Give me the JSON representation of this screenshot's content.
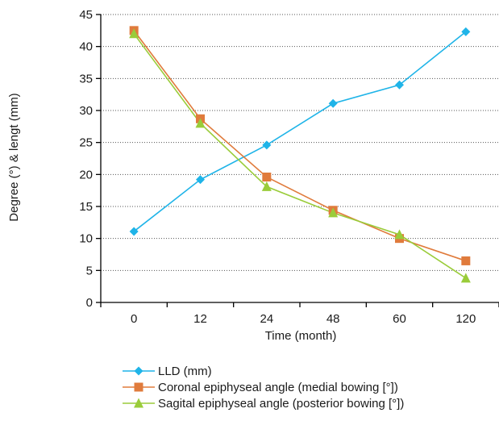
{
  "chart_data": {
    "type": "line",
    "title": "",
    "xlabel": "Time (month)",
    "ylabel": "Degree (°) & lengt (mm)",
    "categories": [
      "0",
      "12",
      "24",
      "48",
      "60",
      "120"
    ],
    "ylim": [
      0,
      45
    ],
    "yticks": [
      0,
      5,
      10,
      15,
      20,
      25,
      30,
      35,
      40,
      45
    ],
    "grid": "horizontal dotted",
    "legend_position": "bottom",
    "series": [
      {
        "name": "LLD (mm)",
        "values": [
          11.1,
          19.2,
          24.6,
          31.1,
          34.0,
          42.3
        ],
        "color": "#1fb4e8",
        "marker": "diamond"
      },
      {
        "name": "Coronal epiphyseal angle (medial bowing [°])",
        "values": [
          42.5,
          28.7,
          19.6,
          14.4,
          10.0,
          6.5
        ],
        "color": "#e07b3c",
        "marker": "square"
      },
      {
        "name": "Sagital epiphyseal angle (posterior bowing [°])",
        "values": [
          42.0,
          28.0,
          18.1,
          14.0,
          10.6,
          3.8
        ],
        "color": "#9acc3a",
        "marker": "triangle"
      }
    ]
  }
}
